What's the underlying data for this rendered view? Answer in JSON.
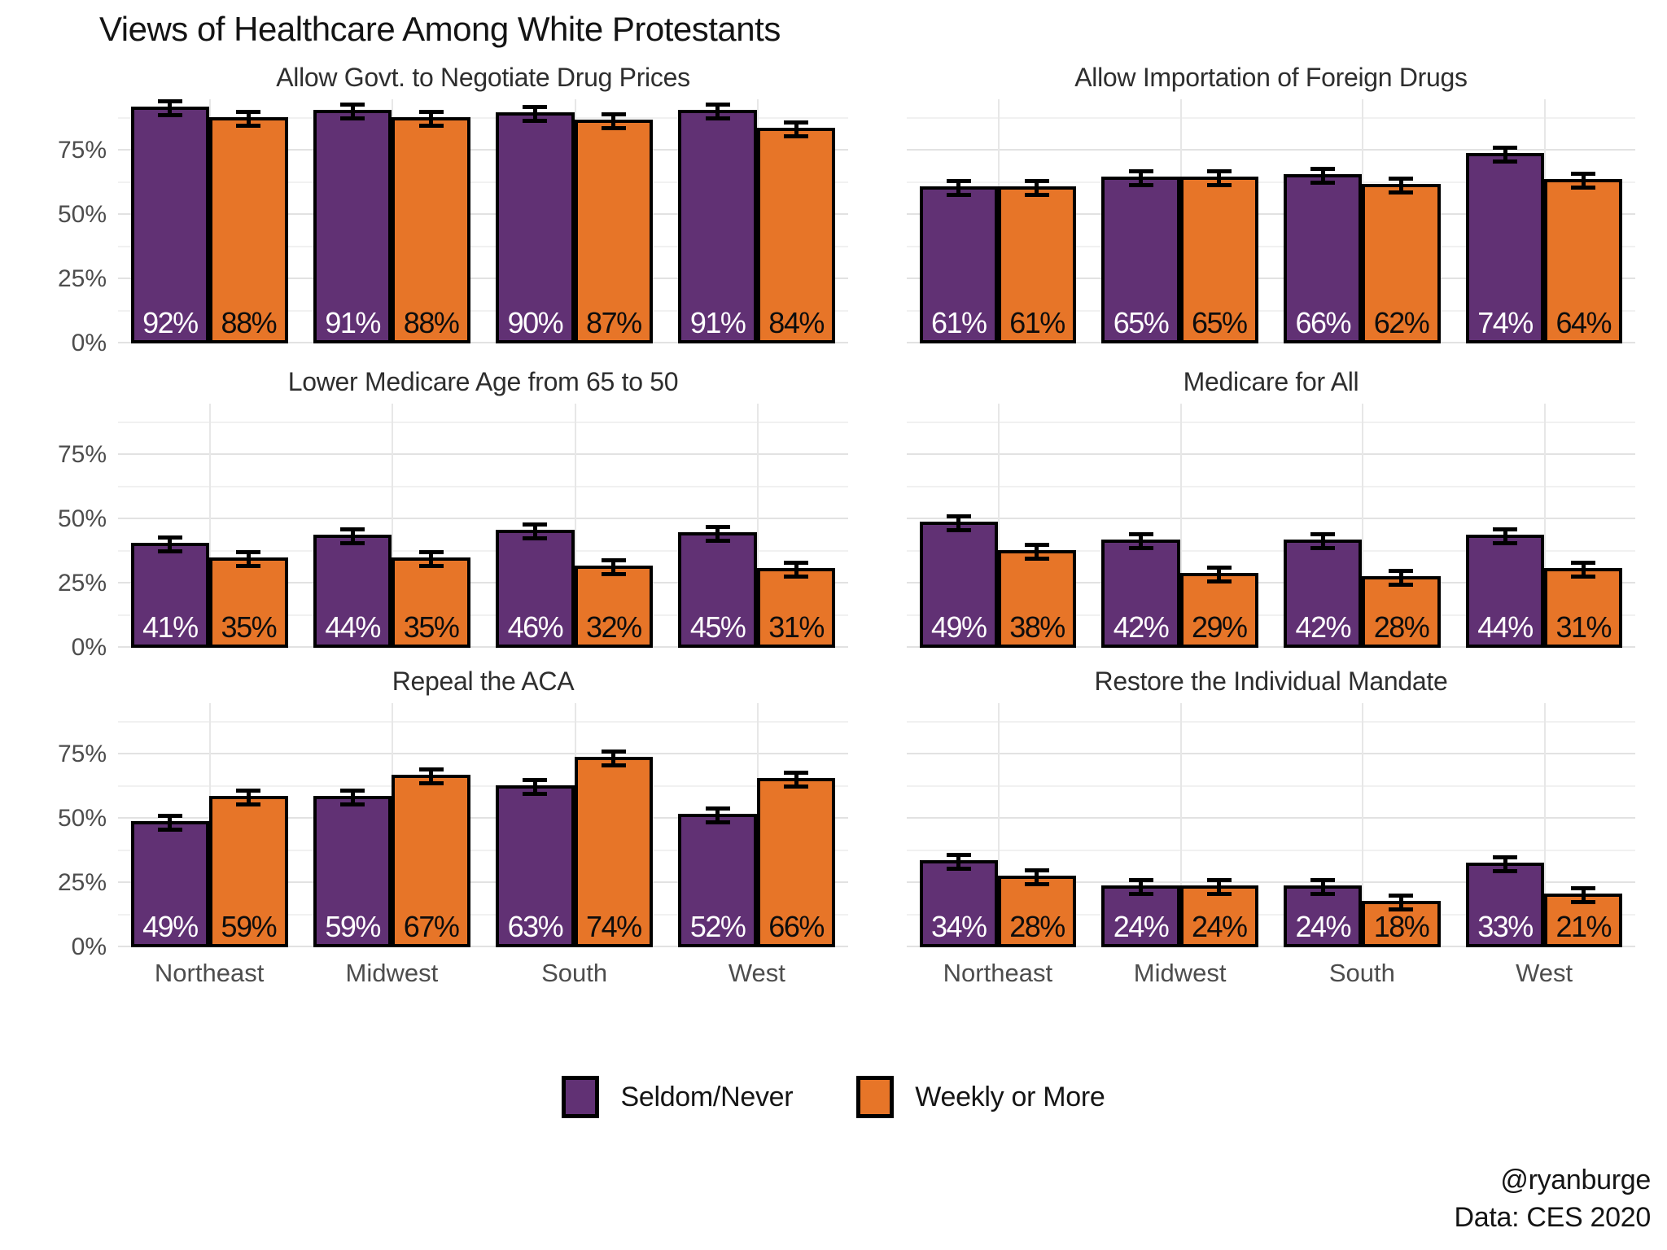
{
  "title": "Views of Healthcare Among White Protestants",
  "legend": {
    "items": [
      {
        "label": "Seldom/Never",
        "color": "#613174"
      },
      {
        "label": "Weekly or More",
        "color": "#E77528"
      }
    ]
  },
  "footer": {
    "handle": "@ryanburge",
    "source": "Data: CES 2020"
  },
  "chart_data": {
    "type": "bar",
    "title": "Views of Healthcare Among White Protestants",
    "categories": [
      "Northeast",
      "Midwest",
      "South",
      "West"
    ],
    "y_axis": {
      "unit": "%",
      "ylim": [
        0,
        95
      ],
      "ticks": [
        {
          "label": "0%",
          "value": 0
        },
        {
          "label": "25%",
          "value": 25
        },
        {
          "label": "50%",
          "value": 50
        },
        {
          "label": "75%",
          "value": 75
        }
      ],
      "minor_gridlines": [
        12.5,
        37.5,
        62.5,
        87.5
      ]
    },
    "legend_position": "bottom",
    "grid": true,
    "error_bars": true,
    "facets": [
      {
        "title": "Allow Govt. to Negotiate Drug Prices",
        "series": [
          {
            "name": "Seldom/Never",
            "values": [
              92,
              91,
              90,
              91
            ]
          },
          {
            "name": "Weekly or More",
            "values": [
              88,
              88,
              87,
              84
            ]
          }
        ]
      },
      {
        "title": "Allow Importation of Foreign Drugs",
        "series": [
          {
            "name": "Seldom/Never",
            "values": [
              61,
              65,
              66,
              74
            ]
          },
          {
            "name": "Weekly or More",
            "values": [
              61,
              65,
              62,
              64
            ]
          }
        ]
      },
      {
        "title": "Lower Medicare Age from 65 to 50",
        "series": [
          {
            "name": "Seldom/Never",
            "values": [
              41,
              44,
              46,
              45
            ]
          },
          {
            "name": "Weekly or More",
            "values": [
              35,
              35,
              32,
              31
            ]
          }
        ]
      },
      {
        "title": "Medicare for All",
        "series": [
          {
            "name": "Seldom/Never",
            "values": [
              49,
              42,
              42,
              44
            ]
          },
          {
            "name": "Weekly or More",
            "values": [
              38,
              29,
              28,
              31
            ]
          }
        ]
      },
      {
        "title": "Repeal the ACA",
        "series": [
          {
            "name": "Seldom/Never",
            "values": [
              49,
              59,
              63,
              52
            ]
          },
          {
            "name": "Weekly or More",
            "values": [
              59,
              67,
              74,
              66
            ]
          }
        ]
      },
      {
        "title": "Restore the Individual Mandate",
        "series": [
          {
            "name": "Seldom/Never",
            "values": [
              34,
              24,
              24,
              33
            ]
          },
          {
            "name": "Weekly or More",
            "values": [
              28,
              24,
              18,
              21
            ]
          }
        ]
      }
    ]
  }
}
